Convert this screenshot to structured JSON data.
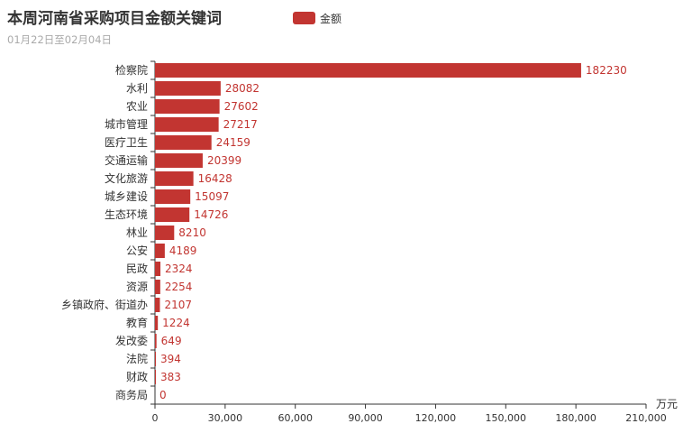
{
  "chart_data": {
    "type": "bar",
    "orientation": "horizontal",
    "title": "本周河南省采购项目金额关键词",
    "subtitle": "01月22日至02月04日",
    "legend": {
      "label": "金额",
      "position": "top"
    },
    "xlabel": "万元",
    "ylabel": "",
    "xlim": [
      0,
      210000
    ],
    "x_ticks": [
      "0",
      "30,000",
      "60,000",
      "90,000",
      "120,000",
      "150,000",
      "180,000",
      "210,000"
    ],
    "categories": [
      "检察院",
      "水利",
      "农业",
      "城市管理",
      "医疗卫生",
      "交通运输",
      "文化旅游",
      "城乡建设",
      "生态环境",
      "林业",
      "公安",
      "民政",
      "资源",
      "乡镇政府、街道办",
      "教育",
      "发改委",
      "法院",
      "财政",
      "商务局"
    ],
    "values": [
      182230,
      28082,
      27602,
      27217,
      24159,
      20399,
      16428,
      15097,
      14726,
      8210,
      4189,
      2324,
      2254,
      2107,
      1224,
      649,
      394,
      383,
      0
    ],
    "value_labels": [
      "182230",
      "28082",
      "27602",
      "27217",
      "24159",
      "20399",
      "16428",
      "15097",
      "14726",
      "8210",
      "4189",
      "2324",
      "2254",
      "2107",
      "1224",
      "649",
      "394",
      "383",
      "0"
    ],
    "grid": false,
    "colors": {
      "bar": "#c23531",
      "label": "#c23531",
      "title": "#333333",
      "subtitle": "#aaaaaa",
      "axis": "#333333"
    }
  }
}
